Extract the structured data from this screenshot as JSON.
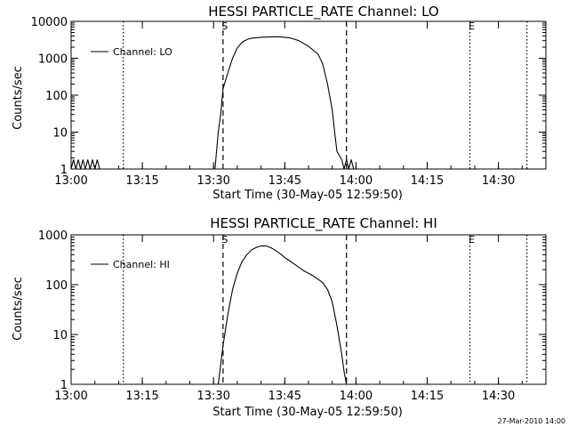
{
  "chart_data": [
    {
      "type": "line",
      "title": "HESSI PARTICLE_RATE Channel: LO",
      "xlabel": "Start Time (30-May-05 12:59:50)",
      "ylabel": "Counts/sec",
      "yscale": "log",
      "xlim": [
        "13:00",
        "14:40"
      ],
      "ylim": [
        1,
        10000
      ],
      "x_ticks": [
        "13:00",
        "13:15",
        "13:30",
        "13:45",
        "14:00",
        "14:15",
        "14:30"
      ],
      "y_ticks": [
        "1",
        "10",
        "100",
        "1000",
        "10000"
      ],
      "legend": {
        "position": "top-left",
        "entries": [
          "Channel: LO"
        ]
      },
      "markers": [
        {
          "label": "S",
          "time": "13:32",
          "style": "dashed"
        },
        {
          "label": "",
          "time": "13:58",
          "style": "dashed"
        },
        {
          "label": "E",
          "time": "14:24",
          "style": "dotted"
        },
        {
          "label": "",
          "time": "13:11",
          "style": "dotted"
        },
        {
          "label": "",
          "time": "14:36",
          "style": "dotted"
        }
      ],
      "series": [
        {
          "name": "Channel: LO",
          "x": [
            "13:00",
            "13:00.5",
            "13:01",
            "13:01.5",
            "13:02",
            "13:02.5",
            "13:03",
            "13:03.5",
            "13:04",
            "13:04.5",
            "13:05",
            "13:05.5",
            "13:06",
            "13:30.3",
            "13:31",
            "13:31.5",
            "13:32",
            "13:33",
            "13:34",
            "13:35",
            "13:36",
            "13:37",
            "13:38",
            "13:40",
            "13:42",
            "13:44",
            "13:46",
            "13:48",
            "13:50",
            "13:52",
            "13:53",
            "13:54",
            "13:55",
            "13:55.5",
            "13:56",
            "13:57",
            "13:57.5",
            "13:58",
            "13:58.5",
            "13:59",
            "13:59.5",
            "14:00"
          ],
          "y": [
            1,
            1.8,
            1,
            1.8,
            1,
            1.8,
            1,
            1.8,
            1,
            1.8,
            1,
            1.8,
            1,
            1,
            10,
            30,
            150,
            400,
            1000,
            1900,
            2700,
            3200,
            3500,
            3700,
            3800,
            3800,
            3600,
            3000,
            2100,
            1300,
            700,
            200,
            40,
            10,
            3,
            1.8,
            1,
            1.8,
            1,
            1.8,
            1,
            1
          ]
        }
      ]
    },
    {
      "type": "line",
      "title": "HESSI PARTICLE_RATE Channel: HI",
      "xlabel": "Start Time (30-May-05 12:59:50)",
      "ylabel": "Counts/sec",
      "yscale": "log",
      "xlim": [
        "13:00",
        "14:40"
      ],
      "ylim": [
        1,
        1000
      ],
      "x_ticks": [
        "13:00",
        "13:15",
        "13:30",
        "13:45",
        "14:00",
        "14:15",
        "14:30"
      ],
      "y_ticks": [
        "1",
        "10",
        "100",
        "1000"
      ],
      "legend": {
        "position": "top-left",
        "entries": [
          "Channel: HI"
        ]
      },
      "markers": [
        {
          "label": "S",
          "time": "13:32",
          "style": "dashed"
        },
        {
          "label": "",
          "time": "13:58",
          "style": "dashed"
        },
        {
          "label": "E",
          "time": "14:24",
          "style": "dotted"
        },
        {
          "label": "",
          "time": "13:11",
          "style": "dotted"
        },
        {
          "label": "",
          "time": "14:36",
          "style": "dotted"
        }
      ],
      "series": [
        {
          "name": "Channel: HI",
          "x": [
            "13:31",
            "13:32",
            "13:33",
            "13:34",
            "13:35",
            "13:36",
            "13:37",
            "13:38",
            "13:39",
            "13:40",
            "13:41",
            "13:42",
            "13:43",
            "13:44",
            "13:45",
            "13:47",
            "13:49",
            "13:51",
            "13:53",
            "13:54",
            "13:55",
            "13:56",
            "13:57",
            "13:57.5",
            "13:58"
          ],
          "y": [
            1,
            6,
            25,
            80,
            170,
            290,
            400,
            500,
            560,
            600,
            600,
            560,
            490,
            420,
            350,
            260,
            190,
            150,
            110,
            80,
            45,
            15,
            4,
            1.8,
            1
          ]
        }
      ]
    }
  ],
  "footer": {
    "timestamp": "27-Mar-2010 14:00"
  }
}
